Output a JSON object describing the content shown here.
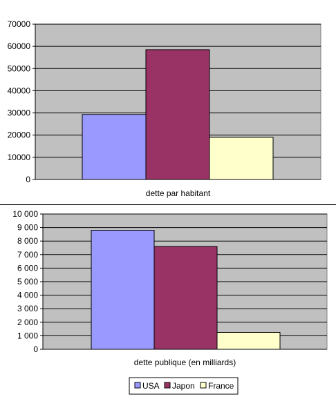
{
  "chart_data": [
    {
      "type": "bar",
      "xlabel": "dette par habitant",
      "ylim": [
        0,
        70000
      ],
      "yticks": [
        "0",
        "10000",
        "20000",
        "30000",
        "40000",
        "50000",
        "60000",
        "70000"
      ],
      "tick_step": 10000,
      "grid": true,
      "plot_background": "#c0c0c0",
      "series": [
        {
          "name": "USA",
          "values": [
            29300
          ],
          "color": "#9999ff"
        },
        {
          "name": "Japon",
          "values": [
            58500
          ],
          "color": "#993366"
        },
        {
          "name": "France",
          "values": [
            19000
          ],
          "color": "#ffffcc"
        }
      ]
    },
    {
      "type": "bar",
      "xlabel": "dette publique (en milliards)",
      "ylim": [
        0,
        10000
      ],
      "yticks": [
        "0",
        "1 000",
        "2 000",
        "3 000",
        "4 000",
        "5 000",
        "6 000",
        "7 000",
        "8 000",
        "9 000",
        "10 000"
      ],
      "tick_step": 1000,
      "grid": true,
      "plot_background": "#c0c0c0",
      "series": [
        {
          "name": "USA",
          "values": [
            8800
          ],
          "color": "#9999ff"
        },
        {
          "name": "Japon",
          "values": [
            7600
          ],
          "color": "#993366"
        },
        {
          "name": "France",
          "values": [
            1250
          ],
          "color": "#ffffcc"
        }
      ]
    }
  ],
  "legend": {
    "position": "bottom",
    "items": [
      {
        "label": "USA",
        "color": "#9999ff"
      },
      {
        "label": "Japon",
        "color": "#993366"
      },
      {
        "label": "France",
        "color": "#ffffcc"
      }
    ]
  }
}
